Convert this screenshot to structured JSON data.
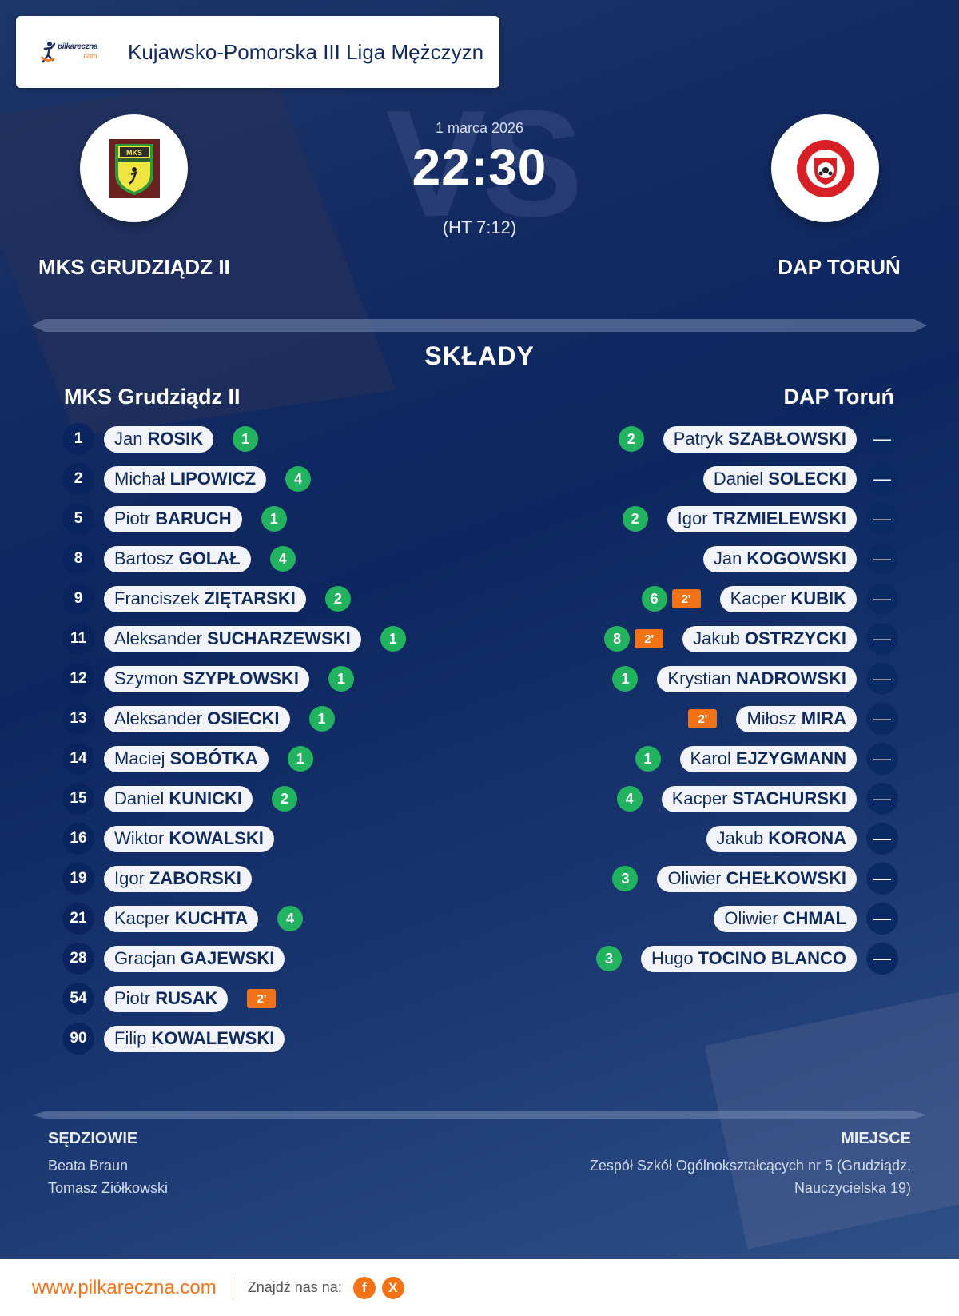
{
  "header": {
    "brand_name": "pilkareczna",
    "brand_suffix": ".com",
    "league": "Kujawsko-Pomorska III Liga Mężczyzn"
  },
  "match": {
    "date": "1 marca 2026",
    "score": "22:30",
    "halftime": "(HT 7:12)",
    "vs_watermark": "VS",
    "home_team": "MKS GRUDZIĄDZ II",
    "away_team": "DAP TORUŃ",
    "home_logo_icon": "mks-grudziadz-crest-icon",
    "away_logo_icon": "dap-torun-crest-icon"
  },
  "lineups": {
    "title": "SKŁADY",
    "home": {
      "team": "MKS Grudziądz II",
      "players": [
        {
          "number": "1",
          "first": "Jan",
          "last": "ROSIK",
          "goals": "1",
          "suspension": ""
        },
        {
          "number": "2",
          "first": "Michał",
          "last": "LIPOWICZ",
          "goals": "4",
          "suspension": ""
        },
        {
          "number": "5",
          "first": "Piotr",
          "last": "BARUCH",
          "goals": "1",
          "suspension": ""
        },
        {
          "number": "8",
          "first": "Bartosz",
          "last": "GOLAŁ",
          "goals": "4",
          "suspension": ""
        },
        {
          "number": "9",
          "first": "Franciszek",
          "last": "ZIĘTARSKI",
          "goals": "2",
          "suspension": ""
        },
        {
          "number": "11",
          "first": "Aleksander",
          "last": "SUCHARZEWSKI",
          "goals": "1",
          "suspension": ""
        },
        {
          "number": "12",
          "first": "Szymon",
          "last": "SZYPŁOWSKI",
          "goals": "1",
          "suspension": ""
        },
        {
          "number": "13",
          "first": "Aleksander",
          "last": "OSIECKI",
          "goals": "1",
          "suspension": ""
        },
        {
          "number": "14",
          "first": "Maciej",
          "last": "SOBÓTKA",
          "goals": "1",
          "suspension": ""
        },
        {
          "number": "15",
          "first": "Daniel",
          "last": "KUNICKI",
          "goals": "2",
          "suspension": ""
        },
        {
          "number": "16",
          "first": "Wiktor",
          "last": "KOWALSKI",
          "goals": "",
          "suspension": ""
        },
        {
          "number": "19",
          "first": "Igor",
          "last": "ZABORSKI",
          "goals": "",
          "suspension": ""
        },
        {
          "number": "21",
          "first": "Kacper",
          "last": "KUCHTA",
          "goals": "4",
          "suspension": ""
        },
        {
          "number": "28",
          "first": "Gracjan",
          "last": "GAJEWSKI",
          "goals": "",
          "suspension": ""
        },
        {
          "number": "54",
          "first": "Piotr",
          "last": "RUSAK",
          "goals": "",
          "suspension": "2'"
        },
        {
          "number": "90",
          "first": "Filip",
          "last": "KOWALEWSKI",
          "goals": "",
          "suspension": ""
        }
      ]
    },
    "away": {
      "team": "DAP Toruń",
      "players": [
        {
          "number": "—",
          "first": "Patryk",
          "last": "SZABŁOWSKI",
          "goals": "2",
          "suspension": ""
        },
        {
          "number": "—",
          "first": "Daniel",
          "last": "SOLECKI",
          "goals": "",
          "suspension": ""
        },
        {
          "number": "—",
          "first": "Igor",
          "last": "TRZMIELEWSKI",
          "goals": "2",
          "suspension": ""
        },
        {
          "number": "—",
          "first": "Jan",
          "last": "KOGOWSKI",
          "goals": "",
          "suspension": ""
        },
        {
          "number": "—",
          "first": "Kacper",
          "last": "KUBIK",
          "goals": "6",
          "suspension": "2'"
        },
        {
          "number": "—",
          "first": "Jakub",
          "last": "OSTRZYCKI",
          "goals": "8",
          "suspension": "2'"
        },
        {
          "number": "—",
          "first": "Krystian",
          "last": "NADROWSKI",
          "goals": "1",
          "suspension": ""
        },
        {
          "number": "—",
          "first": "Miłosz",
          "last": "MIRA",
          "goals": "",
          "suspension": "2'"
        },
        {
          "number": "—",
          "first": "Karol",
          "last": "EJZYGMANN",
          "goals": "1",
          "suspension": ""
        },
        {
          "number": "—",
          "first": "Kacper",
          "last": "STACHURSKI",
          "goals": "4",
          "suspension": ""
        },
        {
          "number": "—",
          "first": "Jakub",
          "last": "KORONA",
          "goals": "",
          "suspension": ""
        },
        {
          "number": "—",
          "first": "Oliwier",
          "last": "CHEŁKOWSKI",
          "goals": "3",
          "suspension": ""
        },
        {
          "number": "—",
          "first": "Oliwier",
          "last": "CHMAL",
          "goals": "",
          "suspension": ""
        },
        {
          "number": "—",
          "first": "Hugo",
          "last": "TOCINO BLANCO",
          "goals": "3",
          "suspension": ""
        }
      ]
    }
  },
  "officials": {
    "label": "SĘDZIOWIE",
    "names": [
      "Beata Braun",
      "Tomasz Ziółkowski"
    ]
  },
  "venue": {
    "label": "MIEJSCE",
    "line1": "Zespół Szkół Ogólnokształcących nr 5 (Grudziądz,",
    "line2": "Nauczycielska 19)"
  },
  "footer": {
    "site": "www.pilkareczna.com",
    "find_us": "Znajdź nas na:",
    "social": [
      {
        "icon": "facebook-icon",
        "glyph": "f"
      },
      {
        "icon": "x-icon",
        "glyph": "X"
      }
    ]
  },
  "colors": {
    "navy": "#0f2a5e",
    "goal_green": "#21b35f",
    "suspension_orange": "#f47216",
    "accent_orange": "#f47216"
  }
}
